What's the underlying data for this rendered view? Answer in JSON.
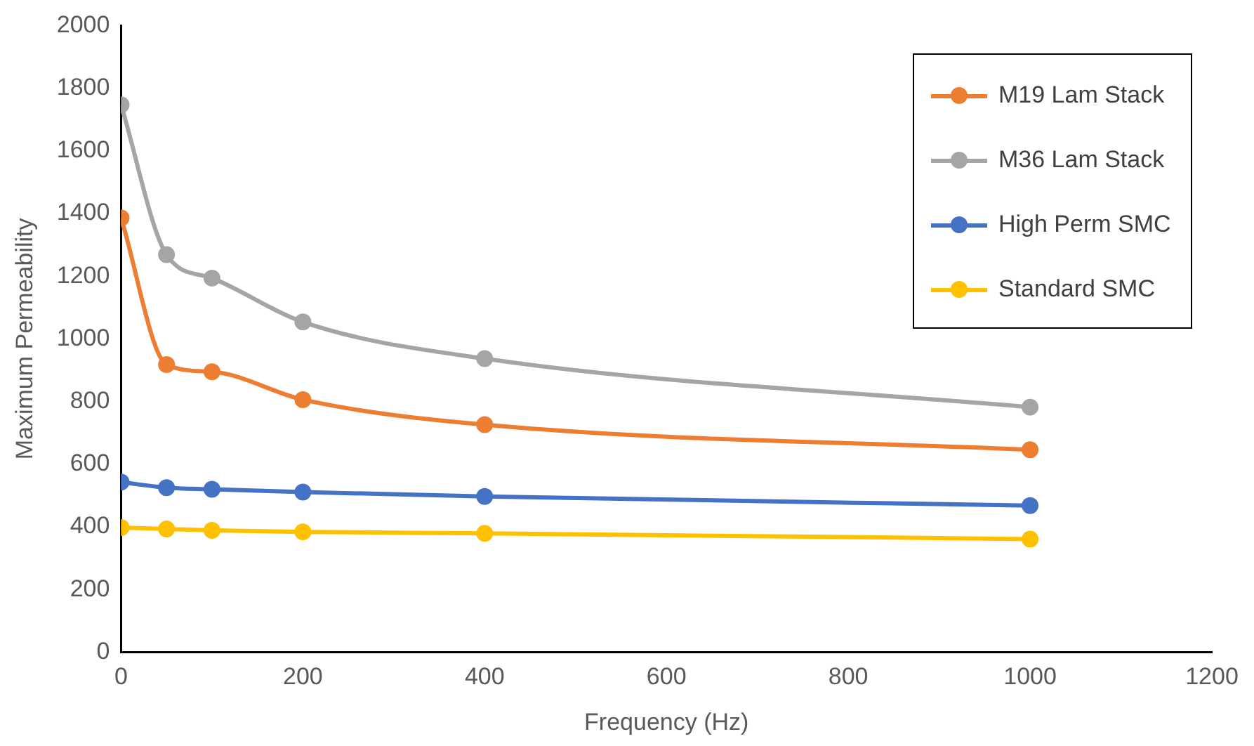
{
  "chart_data": {
    "type": "line",
    "xlabel": "Frequency (Hz)",
    "ylabel": "Maximum Permeability",
    "x": [
      0,
      50,
      100,
      200,
      400,
      1000
    ],
    "series": [
      {
        "name": "M19 Lam Stack",
        "color": "#ed7d31",
        "values": [
          1386,
          918,
          895,
          806,
          726,
          646
        ]
      },
      {
        "name": "M36 Lam Stack",
        "color": "#a5a5a5",
        "values": [
          1747,
          1269,
          1194,
          1054,
          937,
          782
        ]
      },
      {
        "name": "High Perm SMC",
        "color": "#4472c4",
        "values": [
          543,
          525,
          520,
          511,
          497,
          468
        ]
      },
      {
        "name": "Standard SMC",
        "color": "#ffc000",
        "values": [
          398,
          393,
          389,
          384,
          379,
          361
        ]
      }
    ],
    "xlim": [
      0,
      1200
    ],
    "xticks": [
      0,
      200,
      400,
      600,
      800,
      1000,
      1200
    ],
    "ylim": [
      0,
      2000
    ],
    "yticks": [
      0,
      200,
      400,
      600,
      800,
      1000,
      1200,
      1400,
      1600,
      1800,
      2000
    ],
    "grid": false,
    "legend": "top right",
    "marker": "circle",
    "line_style": "solid"
  }
}
